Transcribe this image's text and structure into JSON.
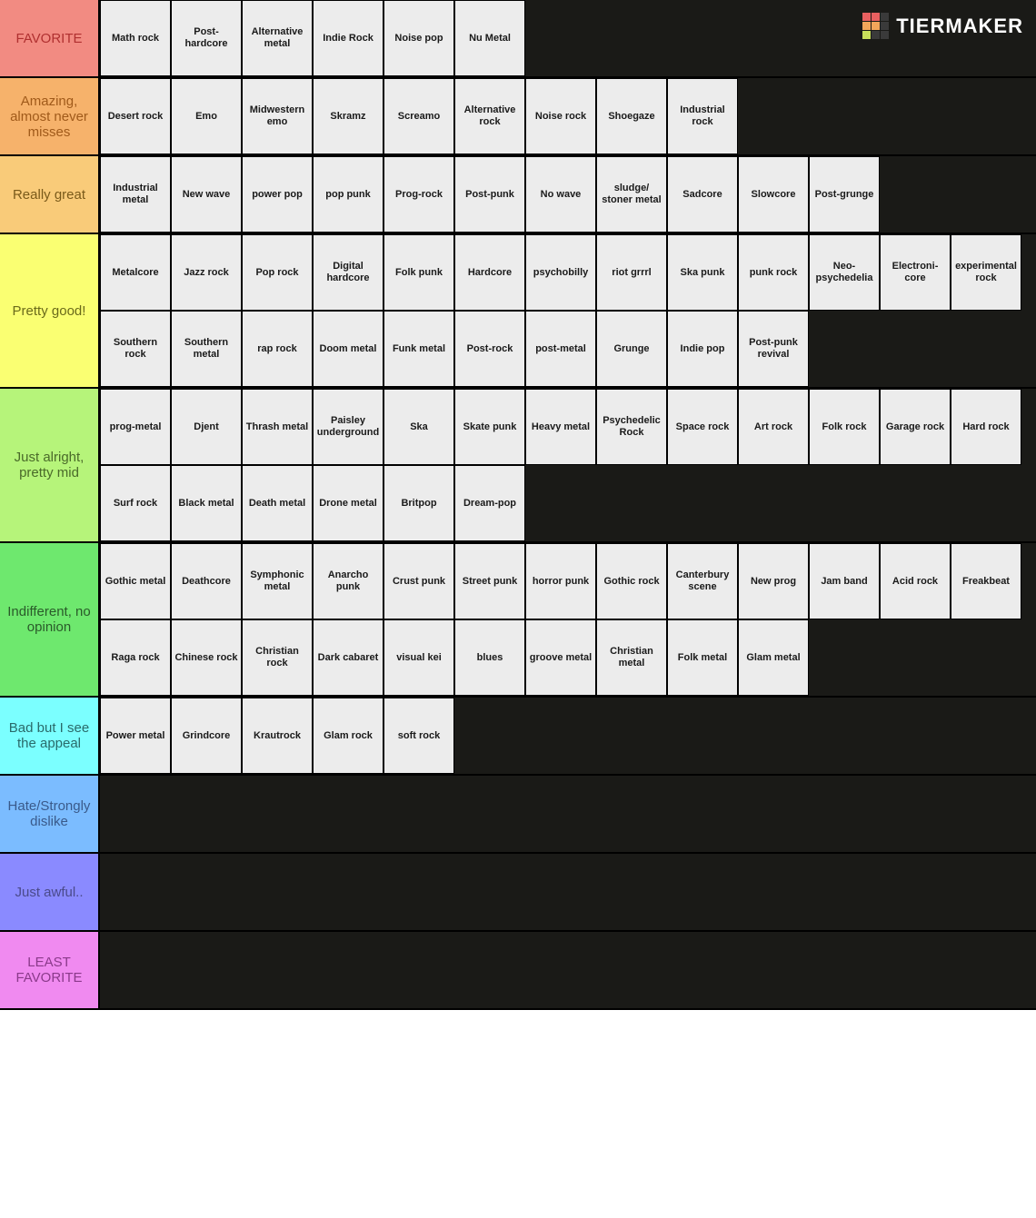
{
  "watermark": {
    "text": "TIERMAKER"
  },
  "item_bg": "#ececec",
  "row_bg": "#1a1a17",
  "tiers": [
    {
      "label": "FAVORITE",
      "color": "#f28b82",
      "text_color": "#b03030",
      "items": [
        "Math rock",
        "Post-hardcore",
        "Alternative metal",
        "Indie Rock",
        "Noise pop",
        "Nu Metal"
      ]
    },
    {
      "label": "Amazing, almost never misses",
      "color": "#f6b26b",
      "text_color": "#a05a1a",
      "items": [
        "Desert rock",
        "Emo",
        "Midwestern emo",
        "Skramz",
        "Screamo",
        "Alternative rock",
        "Noise rock",
        "Shoegaze",
        "Industrial rock"
      ]
    },
    {
      "label": "Really great",
      "color": "#f9cb79",
      "text_color": "#7a5a1a",
      "items": [
        "Industrial metal",
        "New wave",
        "power pop",
        "pop punk",
        "Prog-rock",
        "Post-punk",
        "No wave",
        "sludge/ stoner metal",
        "Sadcore",
        "Slowcore",
        "Post-grunge"
      ]
    },
    {
      "label": "Pretty good!",
      "color": "#faff72",
      "text_color": "#6a6a1a",
      "items": [
        "Metalcore",
        "Jazz rock",
        "Pop rock",
        "Digital hardcore",
        "Folk punk",
        "Hardcore",
        "psychobilly",
        "riot grrrl",
        "Ska punk",
        "punk rock",
        "Neo-psychedelia",
        "Electroni-core",
        "experimental rock",
        "Southern rock",
        "Southern metal",
        "rap rock",
        "Doom metal",
        "Funk metal",
        "Post-rock",
        "post-metal",
        "Grunge",
        "Indie pop",
        "Post-punk revival"
      ]
    },
    {
      "label": "Just alright, pretty mid",
      "color": "#b6f47a",
      "text_color": "#4a6a2a",
      "items": [
        "prog-metal",
        "Djent",
        "Thrash metal",
        "Paisley underground",
        "Ska",
        "Skate punk",
        "Heavy metal",
        "Psychedelic Rock",
        "Space rock",
        "Art rock",
        "Folk rock",
        "Garage rock",
        "Hard rock",
        "Surf rock",
        "Black metal",
        "Death metal",
        "Drone metal",
        "Britpop",
        "Dream-pop"
      ]
    },
    {
      "label": "Indifferent, no opinion",
      "color": "#6ee86e",
      "text_color": "#2a5a2a",
      "items": [
        "Gothic metal",
        "Deathcore",
        "Symphonic metal",
        "Anarcho punk",
        "Crust punk",
        "Street punk",
        "horror punk",
        "Gothic rock",
        "Canterbury scene",
        "New prog",
        "Jam band",
        "Acid rock",
        "Freakbeat",
        "Raga rock",
        "Chinese rock",
        "Christian rock",
        "Dark cabaret",
        "visual kei",
        "blues",
        "groove metal",
        "Christian metal",
        "Folk metal",
        "Glam metal"
      ]
    },
    {
      "label": "Bad but I see the appeal",
      "color": "#7bffff",
      "text_color": "#2a6a6a",
      "items": [
        "Power metal",
        "Grindcore",
        "Krautrock",
        "Glam rock",
        "soft rock"
      ]
    },
    {
      "label": "Hate/Strongly dislike",
      "color": "#7bbcff",
      "text_color": "#3a5a8a",
      "items": []
    },
    {
      "label": "Just awful..",
      "color": "#8a8aff",
      "text_color": "#4a4a8a",
      "items": []
    },
    {
      "label": "LEAST FAVORITE",
      "color": "#f08af0",
      "text_color": "#8a3a8a",
      "items": []
    }
  ]
}
